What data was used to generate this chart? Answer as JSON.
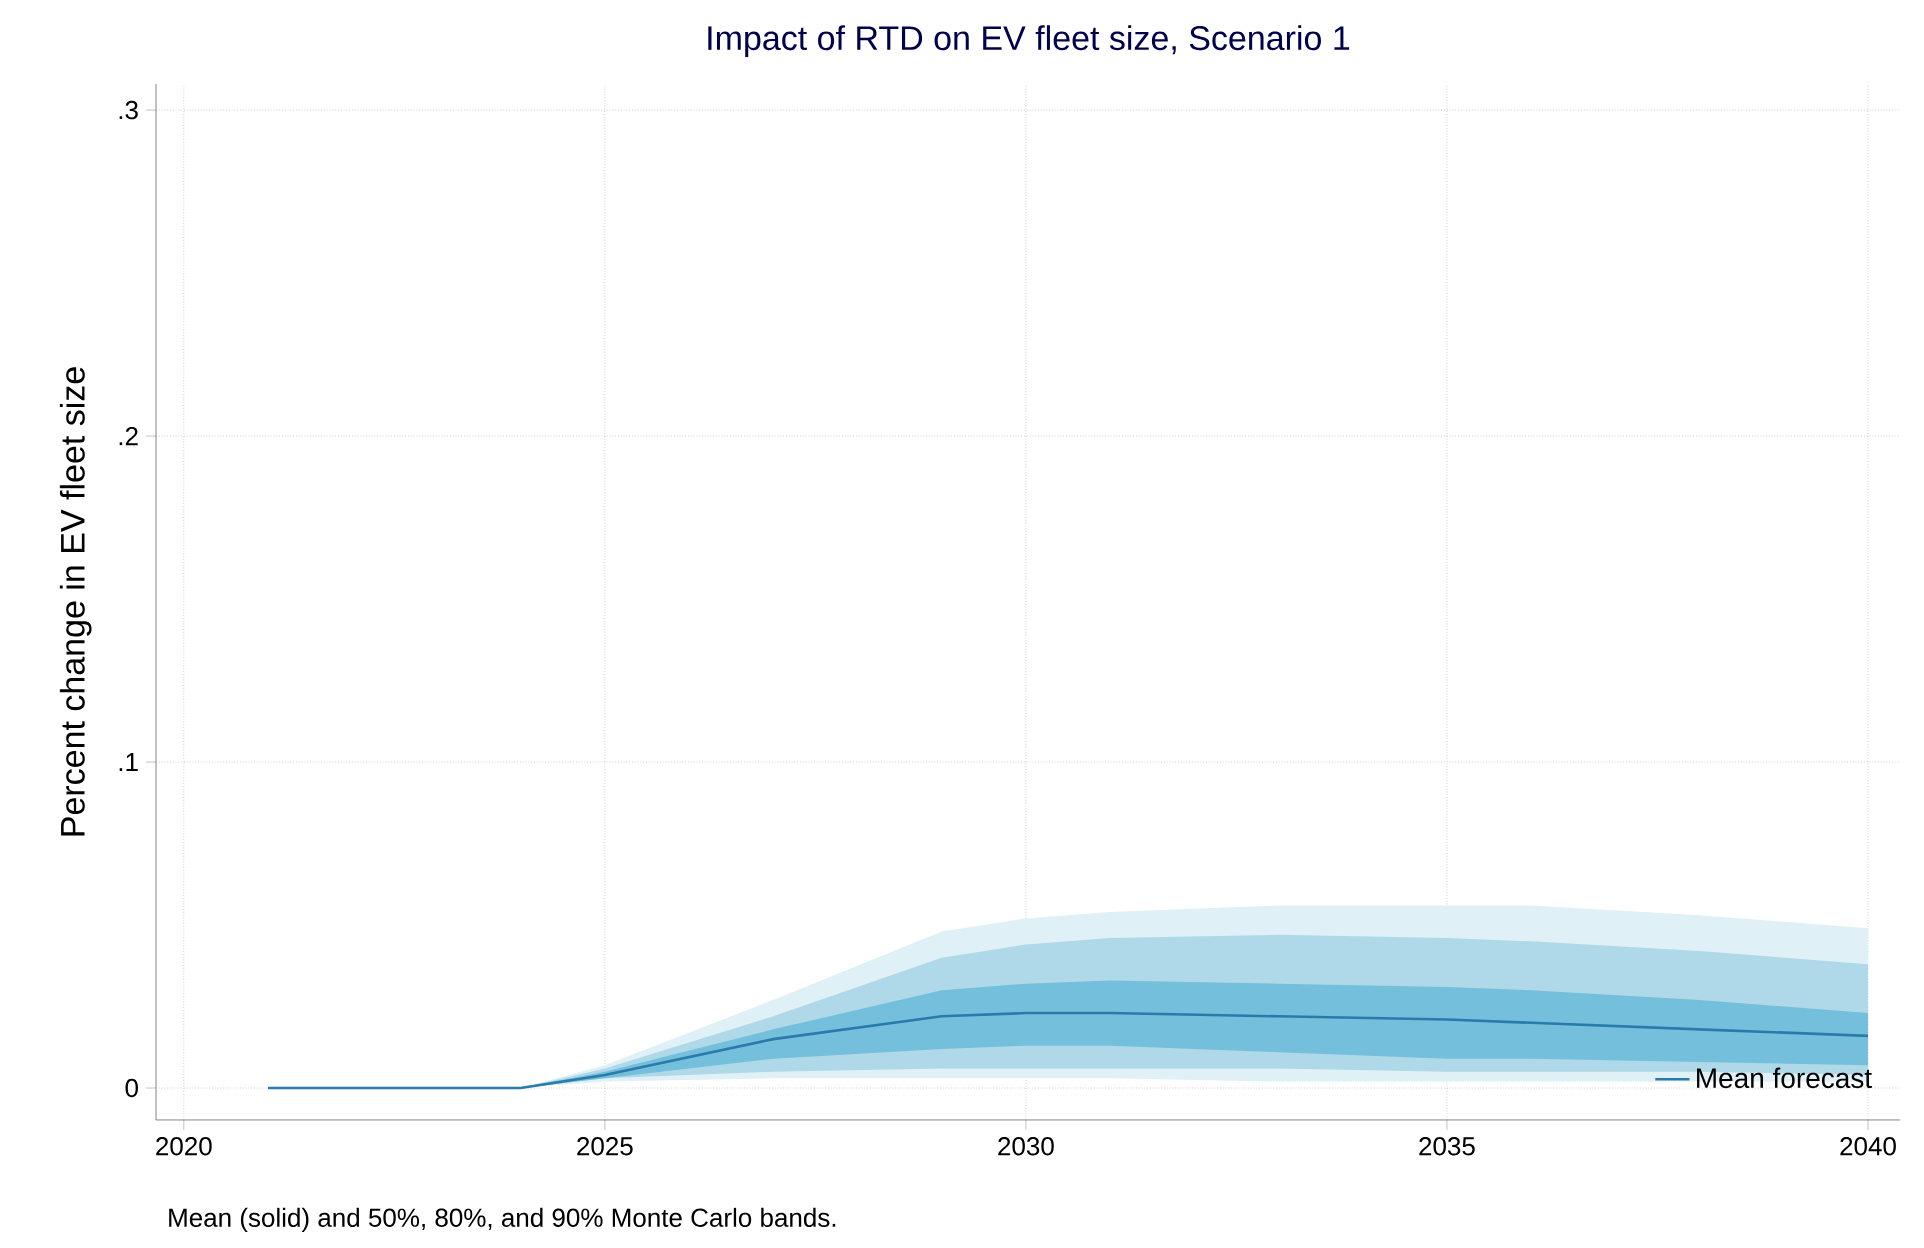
{
  "chart_data": {
    "type": "line",
    "title": "Impact of RTD on EV fleet size, Scenario 1",
    "ylabel": "Percent change in EV fleet size",
    "annotations": [
      "Mean (solid) and 50%, 80%, and 90% Monte Carlo bands."
    ],
    "x": [
      2021,
      2024,
      2025,
      2027,
      2029,
      2030,
      2031,
      2033,
      2035,
      2036,
      2038,
      2040
    ],
    "series": [
      {
        "color": "#dff0f6",
        "values": [
          null,
          null,
          null,
          null,
          null,
          null,
          null,
          null,
          null,
          null,
          null,
          null
        ],
        "lower": [
          0,
          0,
          0.002,
          0.003,
          0.003,
          0.003,
          0.003,
          0.002,
          0.002,
          0.002,
          0.002,
          0.002
        ],
        "upper": [
          0,
          0,
          0.007,
          0.027,
          0.048,
          0.052,
          0.054,
          0.056,
          0.056,
          0.056,
          0.053,
          0.049
        ]
      },
      {
        "color": "#afd9e8",
        "values": [
          null,
          null,
          null,
          null,
          null,
          null,
          null,
          null,
          null,
          null,
          null,
          null
        ],
        "lower": [
          0,
          0,
          0.003,
          0.005,
          0.006,
          0.006,
          0.006,
          0.006,
          0.005,
          0.005,
          0.005,
          0.004
        ],
        "upper": [
          0,
          0,
          0.006,
          0.022,
          0.04,
          0.044,
          0.046,
          0.047,
          0.046,
          0.045,
          0.042,
          0.038
        ]
      },
      {
        "color": "#74bfdb",
        "values": [
          null,
          null,
          null,
          null,
          null,
          null,
          null,
          null,
          null,
          null,
          null,
          null
        ],
        "lower": [
          0,
          0,
          0.003,
          0.009,
          0.012,
          0.013,
          0.013,
          0.011,
          0.009,
          0.009,
          0.008,
          0.007
        ],
        "upper": [
          0,
          0,
          0.005,
          0.018,
          0.03,
          0.032,
          0.033,
          0.032,
          0.031,
          0.03,
          0.027,
          0.023
        ]
      },
      {
        "name": "Mean forecast",
        "color": "#2a7bac",
        "values": [
          0,
          0,
          0.004,
          0.015,
          0.022,
          0.023,
          0.023,
          0.022,
          0.021,
          0.02,
          0.018,
          0.016
        ]
      }
    ],
    "xlim": [
      2019.67,
      2040.38
    ],
    "xticks": [
      2020,
      2025,
      2030,
      2035,
      2040
    ],
    "ylim": [
      -0.0098,
      0.308
    ],
    "yticks": [
      0,
      {
        "value": 0.1,
        "label": ".1"
      },
      {
        "value": 0.2,
        "label": ".2"
      },
      {
        "value": 0.3,
        "label": ".3"
      }
    ],
    "grid": true,
    "legend": "bottom right",
    "line_style": "solid",
    "marker": "none"
  }
}
